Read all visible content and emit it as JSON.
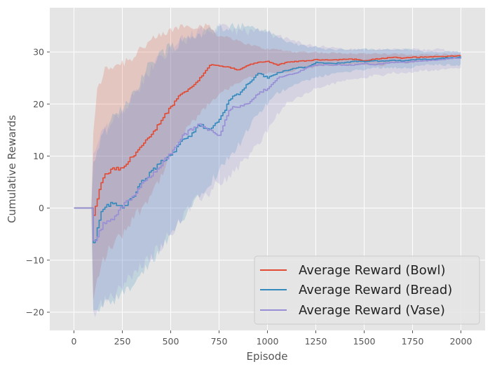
{
  "chart_data": {
    "type": "line",
    "title": "",
    "xlabel": "Episode",
    "ylabel": "Cumulative Rewards",
    "xlim": [
      -125,
      2125
    ],
    "ylim": [
      -23.5,
      38.5
    ],
    "xticks": [
      0,
      250,
      500,
      750,
      1000,
      1250,
      1500,
      1750,
      2000
    ],
    "yticks": [
      -20,
      -10,
      0,
      10,
      20,
      30
    ],
    "xtick_labels": [
      "0",
      "250",
      "500",
      "750",
      "1000",
      "1250",
      "1500",
      "1750",
      "2000"
    ],
    "ytick_labels": [
      "−20",
      "−10",
      "0",
      "10",
      "20",
      "30"
    ],
    "grid": true,
    "style": "ggplot",
    "legend_position": "lower-right",
    "series": [
      {
        "name": "Average Reward (Bowl)",
        "color": "#E24A33",
        "x": [
          0,
          99,
          100,
          110,
          120,
          150,
          200,
          250,
          300,
          350,
          400,
          450,
          500,
          550,
          600,
          650,
          700,
          750,
          800,
          850,
          900,
          950,
          1000,
          1050,
          1100,
          1150,
          1200,
          1250,
          1300,
          1350,
          1400,
          1450,
          1500,
          1550,
          1600,
          1650,
          1700,
          1750,
          1800,
          1850,
          1900,
          1950,
          2000
        ],
        "mean": [
          0,
          0,
          -1.5,
          0,
          2,
          6,
          7.5,
          7.5,
          10,
          12,
          14,
          17,
          19.5,
          22,
          23,
          25,
          27.5,
          27.3,
          27,
          26.5,
          27.5,
          28,
          28.2,
          27.5,
          28,
          28.2,
          28.3,
          28.5,
          28.5,
          28.5,
          28.6,
          28.6,
          28.3,
          28.6,
          28.8,
          29,
          28.8,
          29,
          29,
          29.1,
          29.1,
          29.2,
          29.3
        ],
        "upper": [
          0,
          0,
          15,
          18,
          22,
          26,
          27.5,
          28,
          29,
          31,
          32,
          33,
          34,
          35,
          35,
          35,
          35,
          33,
          33,
          32,
          31.5,
          31,
          30.5,
          30.5,
          30.2,
          30,
          30,
          30,
          29.8,
          29.8,
          29.8,
          29.7,
          29.7,
          29.6,
          29.6,
          29.6,
          29.5,
          29.5,
          29.5,
          29.5,
          29.5,
          29.5,
          29.5
        ],
        "lower": [
          0,
          0,
          -18,
          -16,
          -14,
          -10,
          -7,
          -5,
          -2,
          0,
          3,
          6,
          10,
          13,
          16,
          18,
          20,
          22,
          23,
          24,
          25,
          25.5,
          26,
          26,
          26,
          26.5,
          27,
          27,
          27.5,
          27.5,
          27.5,
          27.5,
          27.5,
          27.5,
          27.5,
          28,
          28,
          28,
          28.5,
          28.5,
          28.5,
          29,
          29
        ]
      },
      {
        "name": "Average Reward (Bread)",
        "color": "#348ABD",
        "x": [
          0,
          99,
          100,
          110,
          130,
          150,
          200,
          250,
          300,
          350,
          400,
          450,
          500,
          550,
          600,
          650,
          700,
          750,
          780,
          800,
          850,
          900,
          950,
          1000,
          1050,
          1100,
          1150,
          1200,
          1250,
          1300,
          1350,
          1400,
          1450,
          1500,
          1550,
          1600,
          1650,
          1700,
          1750,
          1800,
          1850,
          1900,
          1950,
          2000
        ],
        "mean": [
          0,
          0,
          -6.5,
          -6,
          -2,
          0,
          1,
          0,
          2,
          5,
          7,
          9,
          10,
          13,
          14,
          16,
          15,
          17,
          19,
          21,
          22,
          24,
          26,
          25,
          26,
          26.5,
          27,
          27,
          28,
          27.8,
          27.8,
          28,
          28.2,
          28.2,
          28.3,
          28.2,
          28.4,
          28.3,
          28.5,
          28.6,
          28.6,
          28.8,
          28.9,
          29
        ],
        "upper": [
          0,
          0,
          8,
          10,
          12,
          14,
          17,
          19,
          22,
          25,
          28,
          30,
          31,
          32,
          33,
          33.5,
          34,
          34.5,
          35,
          35,
          35,
          35,
          34.5,
          34,
          33,
          32,
          31.5,
          31,
          31,
          30.5,
          30.5,
          30.5,
          30.5,
          30.5,
          30.5,
          30.5,
          30.5,
          30.5,
          30.5,
          30,
          30,
          30,
          30,
          30
        ],
        "lower": [
          0,
          0,
          -20,
          -20,
          -20,
          -19,
          -18,
          -17,
          -15,
          -13,
          -10,
          -8,
          -6,
          -2,
          0,
          3,
          5,
          7,
          9,
          10,
          12,
          15,
          18,
          20,
          22,
          23,
          24,
          24.5,
          25,
          25.5,
          26,
          26,
          26.5,
          26.5,
          27,
          27,
          27,
          27,
          27,
          27.5,
          27.5,
          27.5,
          27.5,
          27.5
        ]
      },
      {
        "name": "Average Reward (Vase)",
        "color": "#988ED5",
        "x": [
          0,
          99,
          100,
          110,
          130,
          150,
          200,
          250,
          300,
          350,
          400,
          450,
          500,
          550,
          600,
          650,
          700,
          750,
          800,
          850,
          900,
          950,
          1000,
          1050,
          1100,
          1150,
          1200,
          1250,
          1300,
          1350,
          1400,
          1450,
          1500,
          1550,
          1600,
          1650,
          1700,
          1750,
          1800,
          1850,
          1900,
          1950,
          2000
        ],
        "mean": [
          0,
          0,
          -6.5,
          -6,
          -4.5,
          -3,
          -2,
          0.5,
          2,
          4.5,
          6.5,
          8.5,
          10.5,
          13.5,
          15,
          16,
          15,
          14,
          19,
          19.5,
          20,
          22,
          23,
          25,
          25.5,
          26,
          27,
          27.5,
          27.5,
          27.5,
          27.5,
          27.5,
          27.8,
          27.5,
          27.8,
          28,
          28,
          28.2,
          28.3,
          28.4,
          28.5,
          28.8,
          28.7
        ],
        "upper": [
          0,
          0,
          10,
          12,
          14,
          15,
          17,
          19,
          21,
          24,
          27,
          29,
          31,
          32,
          33,
          34,
          34,
          34.5,
          34.5,
          34,
          34,
          34,
          33.5,
          33,
          32.5,
          32,
          31.5,
          31,
          31,
          31,
          30.5,
          30.5,
          30.5,
          30.5,
          30.5,
          30.5,
          30.5,
          30.5,
          30.5,
          30.5,
          30.5,
          30,
          30
        ],
        "lower": [
          0,
          0,
          -20,
          -20,
          -19,
          -18,
          -17,
          -15,
          -13,
          -11,
          -9,
          -7,
          -5,
          -2,
          0,
          2,
          3,
          5,
          6,
          8,
          10,
          12,
          15,
          18,
          20,
          21,
          22,
          23,
          23.5,
          24,
          24.5,
          25,
          25,
          25.5,
          25.5,
          26,
          26,
          26,
          26.5,
          26.5,
          26.5,
          27,
          27
        ]
      }
    ]
  }
}
